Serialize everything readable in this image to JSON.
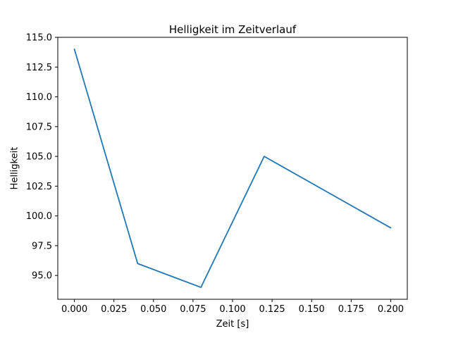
{
  "chart_data": {
    "type": "line",
    "title": "Helligkeit im Zeitverlauf",
    "xlabel": "Zeit [s]",
    "ylabel": "Helligkeit",
    "x": [
      0.0,
      0.04,
      0.08,
      0.12,
      0.2
    ],
    "y": [
      114,
      96,
      94,
      105,
      99
    ],
    "xlim": [
      -0.0105,
      0.2105
    ],
    "ylim": [
      93,
      115
    ],
    "xticks": [
      0.0,
      0.025,
      0.05,
      0.075,
      0.1,
      0.125,
      0.15,
      0.175,
      0.2
    ],
    "xtick_labels": [
      "0.000",
      "0.025",
      "0.050",
      "0.075",
      "0.100",
      "0.125",
      "0.150",
      "0.175",
      "0.200"
    ],
    "yticks": [
      95.0,
      97.5,
      100.0,
      102.5,
      105.0,
      107.5,
      110.0,
      112.5,
      115.0
    ],
    "ytick_labels": [
      "95.0",
      "97.5",
      "100.0",
      "102.5",
      "105.0",
      "107.5",
      "110.0",
      "112.5",
      "115.0"
    ],
    "line_color": "#1f77b4",
    "grid": false,
    "legend_position": "none"
  }
}
